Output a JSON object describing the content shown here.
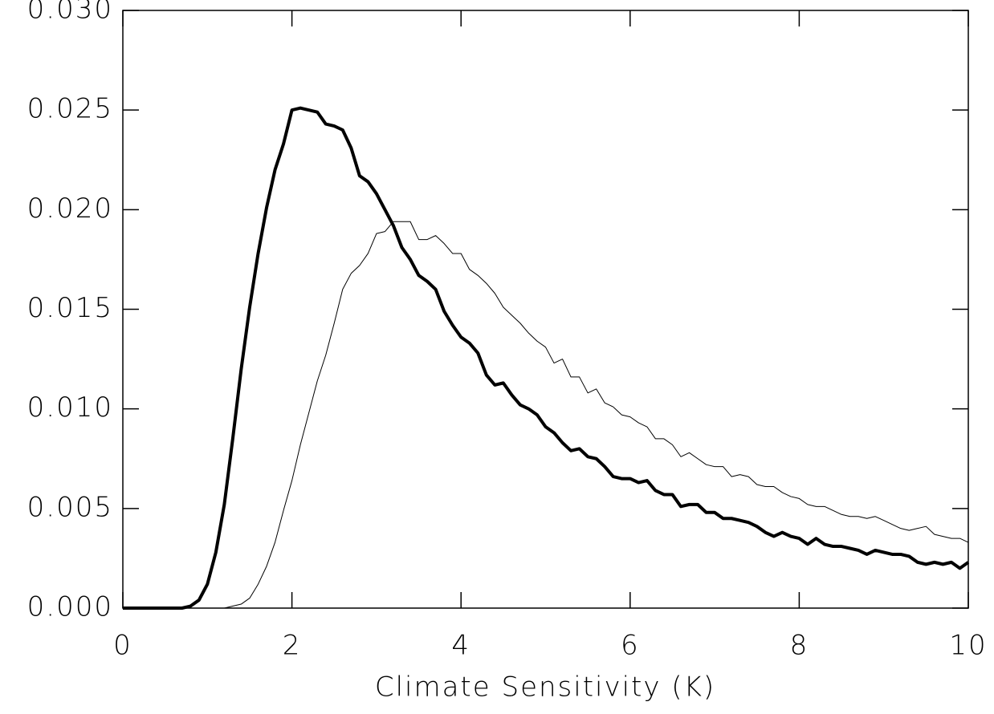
{
  "chart_data": {
    "type": "line",
    "xlabel": "Climate Sensitivity (K)",
    "x": [
      0,
      0.1,
      0.2,
      0.3,
      0.4,
      0.5,
      0.6,
      0.7,
      0.8,
      0.9,
      1,
      1.1,
      1.2,
      1.3,
      1.4,
      1.5,
      1.6,
      1.7,
      1.8,
      1.9,
      2,
      2.1,
      2.2,
      2.3,
      2.4,
      2.5,
      2.6,
      2.7,
      2.8,
      2.9,
      3,
      3.1,
      3.2,
      3.3,
      3.4,
      3.5,
      3.6,
      3.7,
      3.8,
      3.9,
      4,
      4.1,
      4.2,
      4.3,
      4.4,
      4.5,
      4.6,
      4.7,
      4.8,
      4.9,
      5,
      5.1,
      5.2,
      5.3,
      5.4,
      5.5,
      5.6,
      5.7,
      5.8,
      5.9,
      6,
      6.1,
      6.2,
      6.3,
      6.4,
      6.5,
      6.6,
      6.7,
      6.8,
      6.9,
      7,
      7.1,
      7.2,
      7.3,
      7.4,
      7.5,
      7.6,
      7.7,
      7.8,
      7.9,
      8,
      8.1,
      8.2,
      8.3,
      8.4,
      8.5,
      8.6,
      8.7,
      8.8,
      8.9,
      9,
      9.1,
      9.2,
      9.3,
      9.4,
      9.5,
      9.6,
      9.7,
      9.8,
      9.9,
      10
    ],
    "series": [
      {
        "color": "#000000",
        "line_width": 4,
        "values": [
          0,
          0,
          0,
          0,
          0,
          0,
          0,
          0,
          0.0001,
          0.0004,
          0.0012,
          0.0028,
          0.0052,
          0.0085,
          0.012,
          0.0151,
          0.0178,
          0.0201,
          0.022,
          0.0233,
          0.025,
          0.0251,
          0.025,
          0.0249,
          0.0243,
          0.0242,
          0.024,
          0.0231,
          0.0217,
          0.0214,
          0.0208,
          0.02,
          0.0192,
          0.0181,
          0.0175,
          0.0167,
          0.0164,
          0.016,
          0.0149,
          0.0142,
          0.0136,
          0.0133,
          0.0128,
          0.0117,
          0.0112,
          0.0113,
          0.0107,
          0.0102,
          0.01,
          0.0097,
          0.0091,
          0.0088,
          0.0083,
          0.0079,
          0.008,
          0.0076,
          0.0075,
          0.0071,
          0.0066,
          0.0065,
          0.0065,
          0.0063,
          0.0064,
          0.0059,
          0.0057,
          0.0057,
          0.0051,
          0.0052,
          0.0052,
          0.0048,
          0.0048,
          0.0045,
          0.0045,
          0.0044,
          0.0043,
          0.0041,
          0.0038,
          0.0036,
          0.0038,
          0.0036,
          0.0035,
          0.0032,
          0.0035,
          0.0032,
          0.0031,
          0.0031,
          0.003,
          0.0029,
          0.0027,
          0.0029,
          0.0028,
          0.0027,
          0.0027,
          0.0026,
          0.0023,
          0.0022,
          0.0023,
          0.0022,
          0.0023,
          0.002,
          0.0023
        ]
      },
      {
        "color": "#000000",
        "line_width": 1,
        "values": [
          0,
          0,
          0,
          0,
          0,
          0,
          0,
          0,
          0,
          0,
          0,
          0,
          0,
          0.0001,
          0.0002,
          0.0005,
          0.0012,
          0.0021,
          0.0033,
          0.0049,
          0.0064,
          0.0082,
          0.0098,
          0.0114,
          0.0127,
          0.0143,
          0.016,
          0.0168,
          0.0172,
          0.0178,
          0.0188,
          0.0189,
          0.0194,
          0.0194,
          0.0194,
          0.0185,
          0.0185,
          0.0187,
          0.0183,
          0.0178,
          0.0178,
          0.017,
          0.0167,
          0.0163,
          0.0158,
          0.0151,
          0.0147,
          0.0143,
          0.0138,
          0.0134,
          0.0131,
          0.0123,
          0.0125,
          0.0116,
          0.0116,
          0.0108,
          0.011,
          0.0103,
          0.0101,
          0.0097,
          0.0096,
          0.0093,
          0.0091,
          0.0085,
          0.0085,
          0.0082,
          0.0076,
          0.0078,
          0.0075,
          0.0072,
          0.0071,
          0.0071,
          0.0066,
          0.0067,
          0.0066,
          0.0062,
          0.0061,
          0.0061,
          0.0058,
          0.0056,
          0.0055,
          0.0052,
          0.0051,
          0.0051,
          0.0049,
          0.0047,
          0.0046,
          0.0046,
          0.0045,
          0.0046,
          0.0044,
          0.0042,
          0.004,
          0.0039,
          0.004,
          0.0041,
          0.0037,
          0.0036,
          0.0035,
          0.0035,
          0.0033
        ]
      }
    ],
    "xlim": [
      0,
      10
    ],
    "xticks": [
      0,
      2,
      4,
      6,
      8,
      10
    ],
    "ylim": [
      0,
      0.03
    ],
    "yticks": [
      {
        "value": 0,
        "label": "0.000"
      },
      0.005,
      {
        "value": 0.01,
        "label": "0.010"
      },
      0.015,
      {
        "value": 0.02,
        "label": "0.020"
      },
      0.025,
      {
        "value": 0.03,
        "label": "0.030"
      }
    ],
    "grid": false
  }
}
